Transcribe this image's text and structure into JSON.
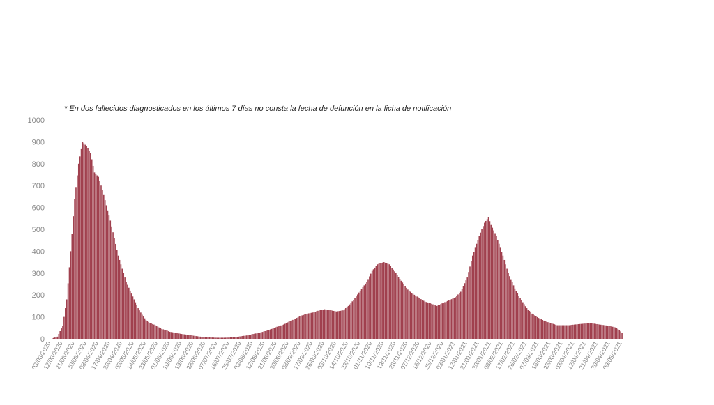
{
  "note": "* En dos  fallecidos diagnosticados en los últimos 7 días no consta la fecha de defunción en la ficha de notificación",
  "colors": {
    "bar": "#a0404e",
    "bar_edge": "#7a2a37",
    "axis": "#cccccc",
    "tick_text": "#888888"
  },
  "chart_data": {
    "type": "bar",
    "title": "",
    "xlabel": "",
    "ylabel": "",
    "ylim": [
      0,
      1000
    ],
    "yticks": [
      0,
      100,
      200,
      300,
      400,
      500,
      600,
      700,
      800,
      900,
      1000
    ],
    "grid": false,
    "x_start_date": "03/03/2020",
    "x_end_date": "09/05/2021",
    "xtick_labels": [
      "03/03/2020",
      "12/03/2020",
      "21/03/2020",
      "30/03/2020",
      "08/04/2020",
      "17/04/2020",
      "26/04/2020",
      "05/05/2020",
      "14/05/2020",
      "23/05/2020",
      "01/06/2020",
      "10/06/2020",
      "19/06/2020",
      "28/06/2020",
      "07/07/2020",
      "16/07/2020",
      "25/07/2020",
      "03/08/2020",
      "12/08/2020",
      "21/08/2020",
      "30/08/2020",
      "08/09/2020",
      "17/09/2020",
      "26/09/2020",
      "05/10/2020",
      "14/10/2020",
      "23/10/2020",
      "01/11/2020",
      "10/11/2020",
      "19/11/2020",
      "28/11/2020",
      "07/12/2020",
      "16/12/2020",
      "25/12/2020",
      "03/01/2021",
      "12/01/2021",
      "21/01/2021",
      "30/01/2021",
      "08/02/2021",
      "17/02/2021",
      "26/02/2021",
      "07/03/2021",
      "16/03/2021",
      "25/03/2021",
      "03/04/2021",
      "12/04/2021",
      "21/04/2021",
      "30/04/2021",
      "09/05/2021"
    ],
    "series_keypoints": [
      [
        "03/03/2020",
        0
      ],
      [
        "08/03/2020",
        10
      ],
      [
        "12/03/2020",
        60
      ],
      [
        "15/03/2020",
        180
      ],
      [
        "18/03/2020",
        400
      ],
      [
        "21/03/2020",
        640
      ],
      [
        "24/03/2020",
        800
      ],
      [
        "27/03/2020",
        900
      ],
      [
        "30/03/2020",
        880
      ],
      [
        "02/04/2020",
        850
      ],
      [
        "05/04/2020",
        760
      ],
      [
        "08/04/2020",
        740
      ],
      [
        "11/04/2020",
        680
      ],
      [
        "14/04/2020",
        610
      ],
      [
        "17/04/2020",
        540
      ],
      [
        "20/04/2020",
        460
      ],
      [
        "23/04/2020",
        380
      ],
      [
        "26/04/2020",
        320
      ],
      [
        "29/04/2020",
        260
      ],
      [
        "02/05/2020",
        220
      ],
      [
        "05/05/2020",
        180
      ],
      [
        "08/05/2020",
        140
      ],
      [
        "11/05/2020",
        110
      ],
      [
        "14/05/2020",
        85
      ],
      [
        "17/05/2020",
        72
      ],
      [
        "20/05/2020",
        65
      ],
      [
        "23/05/2020",
        55
      ],
      [
        "26/05/2020",
        45
      ],
      [
        "29/05/2020",
        40
      ],
      [
        "01/06/2020",
        32
      ],
      [
        "05/06/2020",
        28
      ],
      [
        "10/06/2020",
        22
      ],
      [
        "15/06/2020",
        18
      ],
      [
        "19/06/2020",
        14
      ],
      [
        "24/06/2020",
        10
      ],
      [
        "28/06/2020",
        8
      ],
      [
        "03/07/2020",
        6
      ],
      [
        "07/07/2020",
        5
      ],
      [
        "12/07/2020",
        5
      ],
      [
        "16/07/2020",
        6
      ],
      [
        "21/07/2020",
        8
      ],
      [
        "25/07/2020",
        12
      ],
      [
        "30/07/2020",
        16
      ],
      [
        "03/08/2020",
        22
      ],
      [
        "08/08/2020",
        28
      ],
      [
        "12/08/2020",
        35
      ],
      [
        "17/08/2020",
        45
      ],
      [
        "21/08/2020",
        55
      ],
      [
        "26/08/2020",
        65
      ],
      [
        "30/08/2020",
        78
      ],
      [
        "04/09/2020",
        92
      ],
      [
        "08/09/2020",
        105
      ],
      [
        "13/09/2020",
        115
      ],
      [
        "17/09/2020",
        120
      ],
      [
        "22/09/2020",
        130
      ],
      [
        "26/09/2020",
        135
      ],
      [
        "01/10/2020",
        130
      ],
      [
        "05/10/2020",
        125
      ],
      [
        "10/10/2020",
        130
      ],
      [
        "14/10/2020",
        150
      ],
      [
        "19/10/2020",
        185
      ],
      [
        "23/10/2020",
        220
      ],
      [
        "28/10/2020",
        260
      ],
      [
        "01/11/2020",
        310
      ],
      [
        "05/11/2020",
        340
      ],
      [
        "10/11/2020",
        350
      ],
      [
        "14/11/2020",
        340
      ],
      [
        "19/11/2020",
        300
      ],
      [
        "23/11/2020",
        265
      ],
      [
        "28/11/2020",
        225
      ],
      [
        "02/12/2020",
        205
      ],
      [
        "07/12/2020",
        185
      ],
      [
        "11/12/2020",
        170
      ],
      [
        "16/12/2020",
        160
      ],
      [
        "20/12/2020",
        150
      ],
      [
        "25/12/2020",
        165
      ],
      [
        "29/12/2020",
        175
      ],
      [
        "03/01/2021",
        190
      ],
      [
        "07/01/2021",
        215
      ],
      [
        "12/01/2021",
        280
      ],
      [
        "16/01/2021",
        380
      ],
      [
        "21/01/2021",
        470
      ],
      [
        "25/01/2021",
        530
      ],
      [
        "28/01/2021",
        555
      ],
      [
        "30/01/2021",
        520
      ],
      [
        "03/02/2021",
        470
      ],
      [
        "08/02/2021",
        380
      ],
      [
        "12/02/2021",
        300
      ],
      [
        "17/02/2021",
        230
      ],
      [
        "21/02/2021",
        185
      ],
      [
        "26/02/2021",
        140
      ],
      [
        "02/03/2021",
        115
      ],
      [
        "07/03/2021",
        95
      ],
      [
        "12/03/2021",
        80
      ],
      [
        "16/03/2021",
        72
      ],
      [
        "21/03/2021",
        62
      ],
      [
        "25/03/2021",
        62
      ],
      [
        "30/03/2021",
        62
      ],
      [
        "03/04/2021",
        65
      ],
      [
        "08/04/2021",
        68
      ],
      [
        "12/04/2021",
        70
      ],
      [
        "17/04/2021",
        70
      ],
      [
        "21/04/2021",
        66
      ],
      [
        "26/04/2021",
        62
      ],
      [
        "30/04/2021",
        58
      ],
      [
        "04/05/2021",
        52
      ],
      [
        "07/05/2021",
        40
      ],
      [
        "09/05/2021",
        28
      ]
    ]
  }
}
